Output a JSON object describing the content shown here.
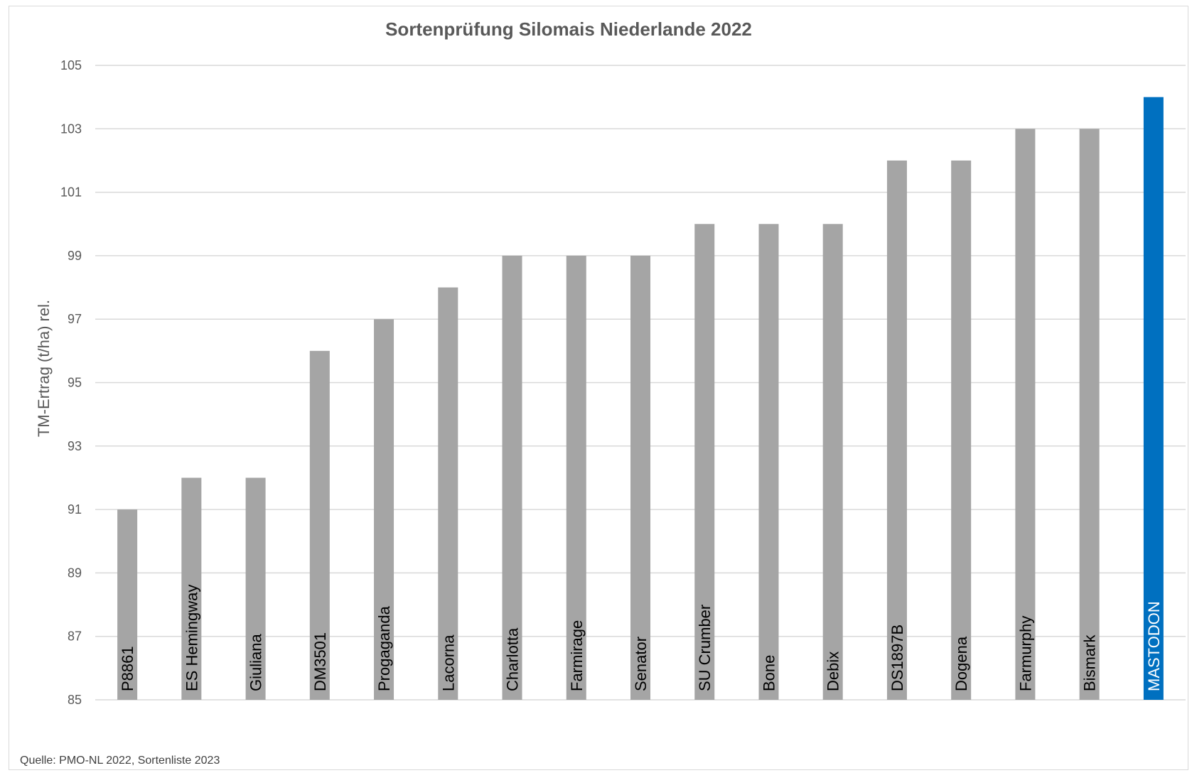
{
  "chart_data": {
    "type": "bar",
    "title": "Sortenprüfung Silomais Niederlande 2022",
    "xlabel": "",
    "ylabel": "TM-Ertrag (t/ha) rel.",
    "ylim": [
      85,
      105
    ],
    "yticks": [
      85,
      87,
      89,
      91,
      93,
      95,
      97,
      99,
      101,
      103,
      105
    ],
    "grid": true,
    "categories": [
      "P8861",
      "ES Hemingway",
      "Giuliana",
      "DM3501",
      "Progaganda",
      "Lacorna",
      "Charlotta",
      "Farmirage",
      "Senator",
      "SU Crumber",
      "Bone",
      "Debix",
      "DS1897B",
      "Dogena",
      "Farmurphy",
      "Bismark",
      "MASTODON"
    ],
    "values": [
      91,
      92,
      92,
      96,
      97,
      98,
      99,
      99,
      99,
      100,
      100,
      100,
      102,
      102,
      103,
      103,
      104
    ],
    "colors": {
      "default_bar": "#a5a5a5",
      "highlight_bar": "#0070c0",
      "highlight_label": "#ffffff",
      "gridline": "#d9d9d9",
      "axis_text": "#595959"
    },
    "highlight_category": "MASTODON",
    "labels_inside_bars": true,
    "label_orientation": "vertical"
  },
  "source_note": "Quelle: PMO-NL 2022, Sortenliste 2023"
}
